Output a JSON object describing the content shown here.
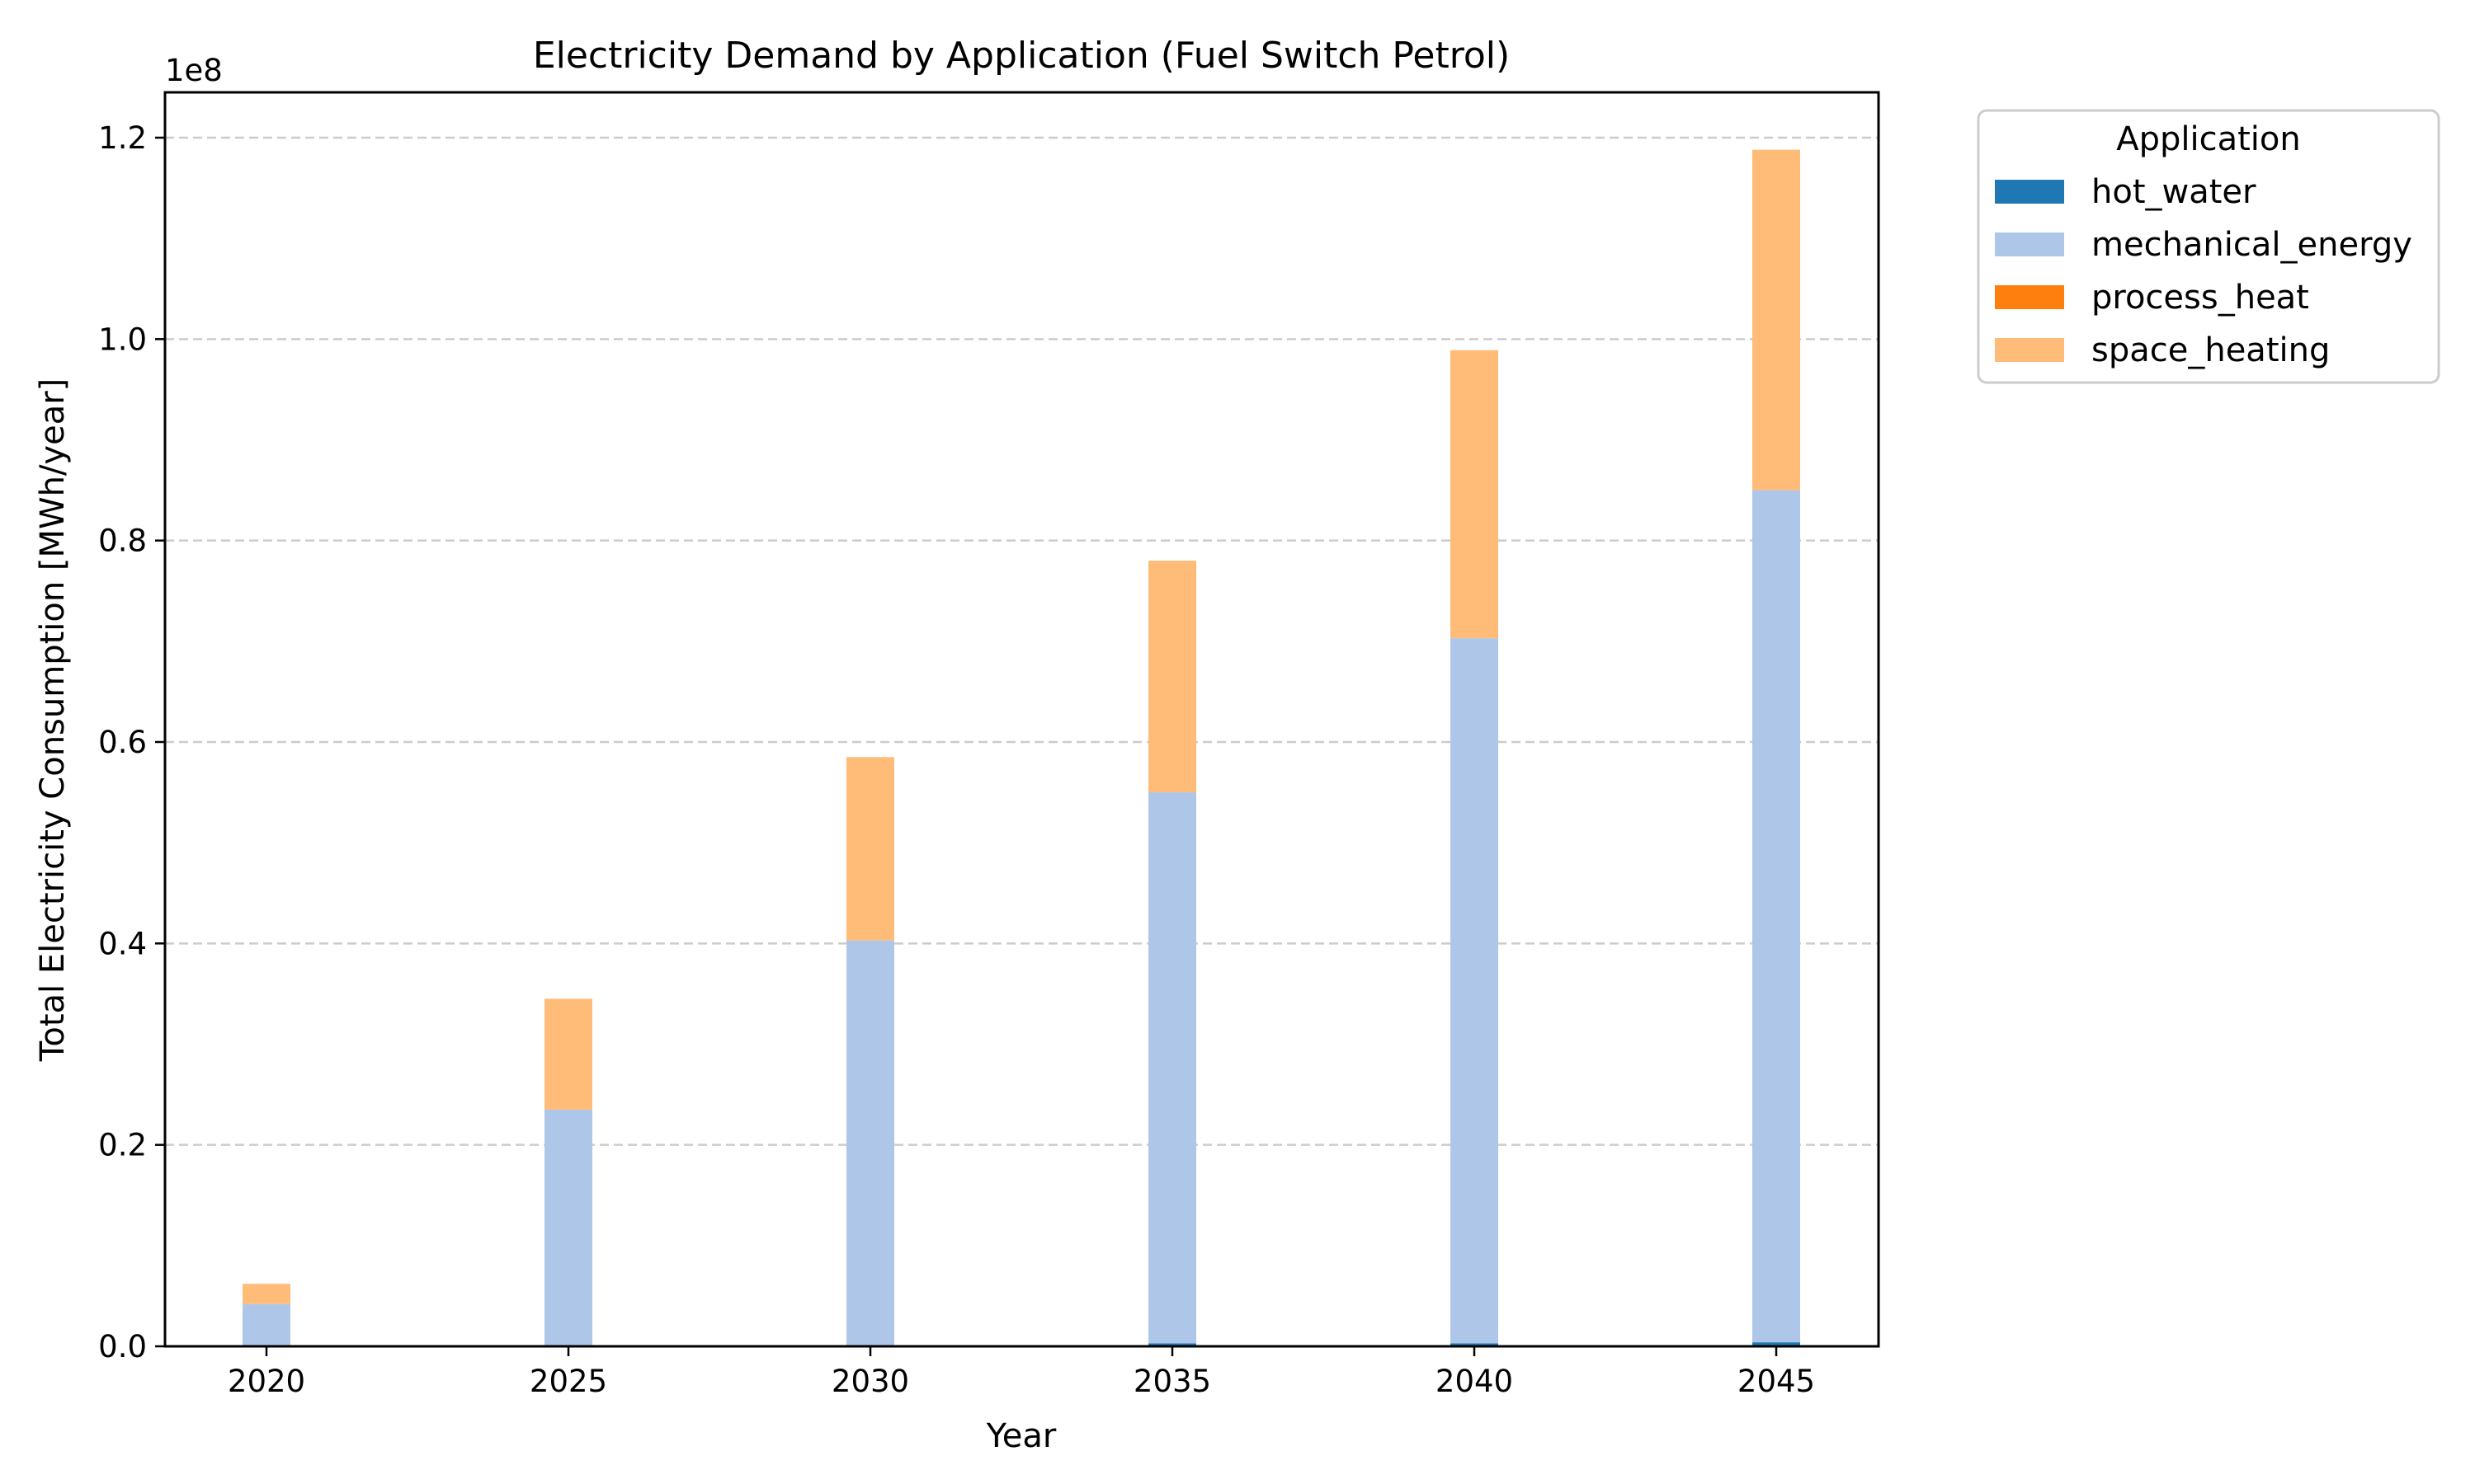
{
  "chart_data": {
    "type": "bar",
    "stacked": true,
    "title": "Electricity Demand by Application (Fuel Switch Petrol)",
    "xlabel": "Year",
    "ylabel": "Total Electricity Consumption [MWh/year]",
    "y_offset_label": "1e8",
    "categories": [
      "2020",
      "2025",
      "2030",
      "2035",
      "2040",
      "2045"
    ],
    "x_ticks": [
      "2020",
      "2025",
      "2030",
      "2035",
      "2040",
      "2045"
    ],
    "y_ticks": [
      "0.0",
      "0.2",
      "0.4",
      "0.6",
      "0.8",
      "1.0",
      "1.2"
    ],
    "y_tick_values": [
      0,
      0.2,
      0.4,
      0.6,
      0.8,
      1.0,
      1.2
    ],
    "ylim": [
      0,
      1.245
    ],
    "y_unit_multiplier": 100000000,
    "grid": "y-dashed",
    "legend": {
      "title": "Application",
      "placement": "outside-top-right"
    },
    "series": [
      {
        "name": "hot_water",
        "color": "#1f77b4",
        "values": [
          0.0,
          0.0,
          0.0,
          0.003,
          0.003,
          0.004
        ]
      },
      {
        "name": "mechanical_energy",
        "color": "#aec7e8",
        "values": [
          0.042,
          0.235,
          0.403,
          0.547,
          0.7,
          0.846
        ]
      },
      {
        "name": "process_heat",
        "color": "#ff7f0e",
        "values": [
          0.0,
          0.0,
          0.0,
          0.0,
          0.0,
          0.0
        ]
      },
      {
        "name": "space_heating",
        "color": "#ffbb78",
        "values": [
          0.02,
          0.11,
          0.182,
          0.23,
          0.286,
          0.338
        ]
      }
    ]
  }
}
